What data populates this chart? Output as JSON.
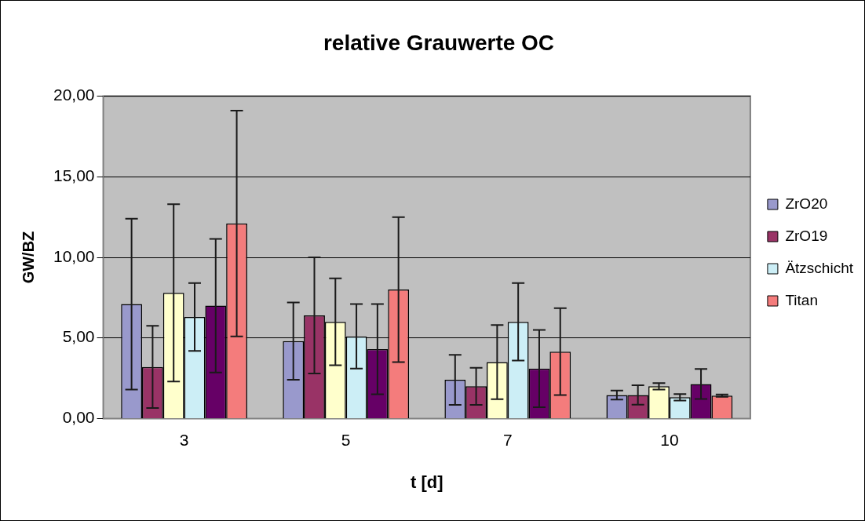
{
  "chart_data": {
    "type": "bar",
    "title": "relative Grauwerte OC",
    "xlabel": "t [d]",
    "ylabel": "GW/BZ",
    "categories": [
      "3",
      "5",
      "7",
      "10"
    ],
    "series": [
      {
        "name": "ZrO20",
        "color": "#9999cc",
        "values": [
          7.1,
          4.8,
          2.4,
          1.46
        ],
        "errors": [
          5.3,
          2.4,
          1.55,
          0.28
        ]
      },
      {
        "name": "ZrO19",
        "color": "#993366",
        "values": [
          3.2,
          6.4,
          2.0,
          1.46
        ],
        "errors": [
          2.55,
          3.6,
          1.15,
          0.6
        ]
      },
      {
        "color": "#ffffcc",
        "values": [
          7.8,
          6.0,
          3.5,
          2.0
        ],
        "errors": [
          5.5,
          2.7,
          2.3,
          0.2
        ]
      },
      {
        "name": "Ätzschicht",
        "color": "#cceef6",
        "values": [
          6.3,
          5.1,
          6.0,
          1.32
        ],
        "errors": [
          2.1,
          2.0,
          2.4,
          0.2
        ]
      },
      {
        "color": "#660066",
        "values": [
          7.0,
          4.3,
          3.1,
          2.14
        ],
        "errors": [
          4.15,
          2.8,
          2.4,
          0.93
        ]
      },
      {
        "name": "Titan",
        "color": "#f47c7c",
        "values": [
          12.1,
          8.0,
          4.15,
          1.42
        ],
        "errors": [
          7.0,
          4.5,
          2.7,
          0.07
        ]
      }
    ],
    "ylim": [
      0,
      20
    ],
    "yticks": [
      {
        "value": 0,
        "label": "0,00"
      },
      {
        "value": 5,
        "label": "5,00"
      },
      {
        "value": 10,
        "label": "10,00"
      },
      {
        "value": 15,
        "label": "15,00"
      },
      {
        "value": 20,
        "label": "20,00"
      }
    ],
    "grid": "y",
    "legend": "right"
  }
}
